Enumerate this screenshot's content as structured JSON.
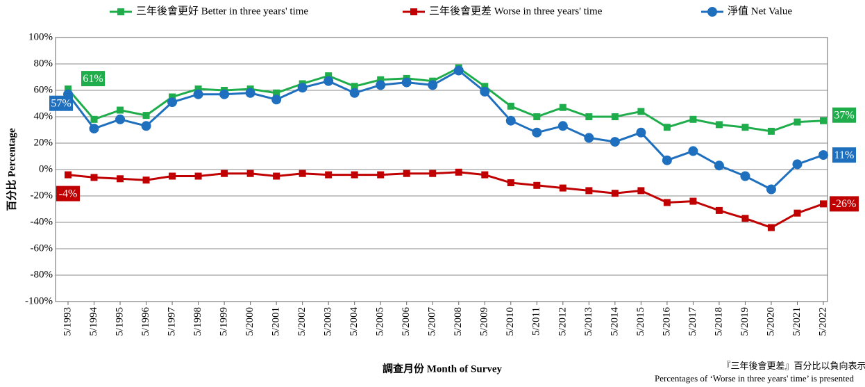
{
  "chart_data": {
    "type": "line",
    "x_label": "調查月份 Month of Survey",
    "y_label": "百分比 Percentage",
    "notes": [
      "『三年後會更差』百分比以負向表示。",
      "Percentages of ‘Worse in three years' time’ is presented"
    ],
    "categories": [
      "5/1993",
      "5/1994",
      "5/1995",
      "5/1996",
      "5/1997",
      "5/1998",
      "5/1999",
      "5/2000",
      "5/2001",
      "5/2002",
      "5/2003",
      "5/2004",
      "5/2005",
      "5/2006",
      "5/2007",
      "5/2008",
      "5/2009",
      "5/2010",
      "5/2011",
      "5/2012",
      "5/2013",
      "5/2014",
      "5/2015",
      "5/2016",
      "5/2017",
      "5/2018",
      "5/2019",
      "5/2020",
      "5/2021",
      "5/2022"
    ],
    "series": [
      {
        "name": "三年後會更好 Better in three years' time",
        "color": "#1fad4b",
        "marker": "square",
        "values": [
          61,
          38,
          45,
          41,
          55,
          61,
          60,
          61,
          58,
          65,
          71,
          63,
          68,
          69,
          67,
          77,
          63,
          48,
          40,
          47,
          40,
          40,
          44,
          32,
          38,
          34,
          32,
          29,
          36,
          37
        ],
        "value_labels": [
          "61%",
          null,
          null,
          null,
          null,
          null,
          null,
          null,
          null,
          null,
          null,
          null,
          null,
          null,
          null,
          null,
          null,
          null,
          null,
          null,
          null,
          null,
          null,
          null,
          null,
          null,
          null,
          null,
          null,
          "37%"
        ]
      },
      {
        "name": "三年後會更差 Worse in three years' time",
        "color": "#c00000",
        "marker": "square",
        "values": [
          -4,
          -6,
          -7,
          -8,
          -5,
          -5,
          -3,
          -3,
          -5,
          -3,
          -4,
          -4,
          -4,
          -3,
          -3,
          -2,
          -4,
          -10,
          -12,
          -14,
          -16,
          -18,
          -16,
          -25,
          -24,
          -31,
          -37,
          -44,
          -33,
          -26
        ],
        "value_labels": [
          "-4%",
          null,
          null,
          null,
          null,
          null,
          null,
          null,
          null,
          null,
          null,
          null,
          null,
          null,
          null,
          null,
          null,
          null,
          null,
          null,
          null,
          null,
          null,
          null,
          null,
          null,
          null,
          null,
          null,
          "-26%"
        ]
      },
      {
        "name": "淨值 Net Value",
        "color": "#1f6fbf",
        "marker": "circle",
        "values": [
          57,
          31,
          38,
          33,
          51,
          57,
          57,
          58,
          53,
          62,
          67,
          58,
          64,
          66,
          64,
          75,
          59,
          37,
          28,
          33,
          24,
          21,
          28,
          7,
          14,
          3,
          -5,
          -15,
          4,
          11
        ],
        "value_labels": [
          "57%",
          null,
          null,
          null,
          null,
          null,
          null,
          null,
          null,
          null,
          null,
          null,
          null,
          null,
          null,
          null,
          null,
          null,
          null,
          null,
          null,
          null,
          null,
          null,
          null,
          null,
          null,
          null,
          null,
          "11%"
        ]
      }
    ],
    "ylim": [
      -100,
      100
    ],
    "yticks": [
      {
        "value": -100,
        "label": "-100%"
      },
      {
        "value": -80,
        "label": "-80%"
      },
      {
        "value": -60,
        "label": "-60%"
      },
      {
        "value": -40,
        "label": "-40%"
      },
      {
        "value": -20,
        "label": "-20%"
      },
      {
        "value": 0,
        "label": "0%"
      },
      {
        "value": 20,
        "label": "20%"
      },
      {
        "value": 40,
        "label": "40%"
      },
      {
        "value": 60,
        "label": "60%"
      },
      {
        "value": 80,
        "label": "80%"
      },
      {
        "value": 100,
        "label": "100%"
      }
    ],
    "grid": true,
    "legend": "top"
  }
}
